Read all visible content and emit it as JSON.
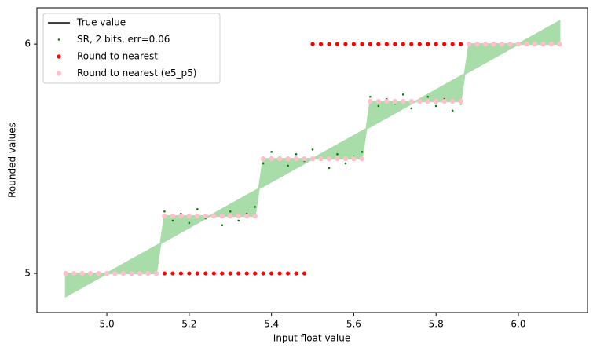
{
  "chart_data": {
    "type": "line",
    "xlabel": "Input float value",
    "ylabel": "Rounded values",
    "x": [
      4.9,
      4.92,
      4.94,
      4.96,
      4.98,
      5,
      5.02,
      5.04,
      5.06,
      5.08,
      5.1,
      5.12,
      5.14,
      5.16,
      5.18,
      5.2,
      5.22,
      5.24,
      5.26,
      5.28,
      5.3,
      5.32,
      5.34,
      5.36,
      5.38,
      5.4,
      5.42,
      5.44,
      5.46,
      5.48,
      5.5,
      5.52,
      5.54,
      5.56,
      5.58,
      5.6,
      5.62,
      5.64,
      5.66,
      5.68,
      5.7,
      5.72,
      5.74,
      5.76,
      5.78,
      5.8,
      5.82,
      5.84,
      5.86,
      5.88,
      5.9,
      5.92,
      5.94,
      5.96,
      5.98,
      6,
      6.02,
      6.04,
      6.06,
      6.08,
      6.1
    ],
    "series": [
      {
        "name": "True value",
        "color": "#000000",
        "style": "line",
        "values": [
          4.9,
          4.92,
          4.94,
          4.96,
          4.98,
          5,
          5.02,
          5.04,
          5.06,
          5.08,
          5.1,
          5.12,
          5.14,
          5.16,
          5.18,
          5.2,
          5.22,
          5.24,
          5.26,
          5.28,
          5.3,
          5.32,
          5.34,
          5.36,
          5.38,
          5.4,
          5.42,
          5.44,
          5.46,
          5.48,
          5.5,
          5.52,
          5.54,
          5.56,
          5.58,
          5.6,
          5.62,
          5.64,
          5.66,
          5.68,
          5.7,
          5.72,
          5.74,
          5.76,
          5.78,
          5.8,
          5.82,
          5.84,
          5.86,
          5.88,
          5.9,
          5.92,
          5.94,
          5.96,
          5.98,
          6,
          6.02,
          6.04,
          6.06,
          6.08,
          6.1
        ]
      },
      {
        "name": "SR, 2 bits, err=0.06",
        "color": "#008000",
        "style": "scatter",
        "values": [
          5,
          5,
          5,
          5,
          5,
          5,
          5,
          5,
          5,
          5,
          5,
          5,
          5.27,
          5.23,
          5.26,
          5.22,
          5.28,
          5.24,
          5.25,
          5.21,
          5.27,
          5.23,
          5.26,
          5.29,
          5.48,
          5.53,
          5.51,
          5.47,
          5.52,
          5.49,
          5.54,
          5.5,
          5.46,
          5.52,
          5.48,
          5.51,
          5.53,
          5.77,
          5.73,
          5.76,
          5.74,
          5.78,
          5.72,
          5.75,
          5.77,
          5.73,
          5.76,
          5.71,
          5.74,
          6,
          6,
          6,
          6,
          6,
          6,
          6,
          6,
          6,
          6,
          6,
          6
        ]
      },
      {
        "name": "Round to nearest",
        "color": "#ff0000",
        "style": "scatter",
        "values": [
          5,
          5,
          5,
          5,
          5,
          5,
          5,
          5,
          5,
          5,
          5,
          5,
          5,
          5,
          5,
          5,
          5,
          5,
          5,
          5,
          5,
          5,
          5,
          5,
          5,
          5,
          5,
          5,
          5,
          5,
          6,
          6,
          6,
          6,
          6,
          6,
          6,
          6,
          6,
          6,
          6,
          6,
          6,
          6,
          6,
          6,
          6,
          6,
          6,
          6,
          6,
          6,
          6,
          6,
          6,
          6,
          6,
          6,
          6,
          6,
          6
        ]
      },
      {
        "name": "Round to nearest (e5_p5)",
        "color": "#ffc0cb",
        "style": "scatter",
        "values": [
          5,
          5,
          5,
          5,
          5,
          5,
          5,
          5,
          5,
          5,
          5,
          5,
          5.25,
          5.25,
          5.25,
          5.25,
          5.25,
          5.25,
          5.25,
          5.25,
          5.25,
          5.25,
          5.25,
          5.25,
          5.5,
          5.5,
          5.5,
          5.5,
          5.5,
          5.5,
          5.5,
          5.5,
          5.5,
          5.5,
          5.5,
          5.5,
          5.5,
          5.75,
          5.75,
          5.75,
          5.75,
          5.75,
          5.75,
          5.75,
          5.75,
          5.75,
          5.75,
          5.75,
          5.75,
          6,
          6,
          6,
          6,
          6,
          6,
          6,
          6,
          6,
          6,
          6,
          6
        ]
      }
    ],
    "fill_color": "#a8dca8",
    "xlim": [
      4.83,
      6.168
    ],
    "ylim": [
      4.829,
      6.158
    ],
    "xticks": [
      {
        "value": 5,
        "label": "5.0"
      },
      5.2,
      5.4,
      5.6,
      5.8,
      {
        "value": 6,
        "label": "6.0"
      }
    ],
    "yticks": [
      5,
      6
    ],
    "legend": "upper left"
  }
}
